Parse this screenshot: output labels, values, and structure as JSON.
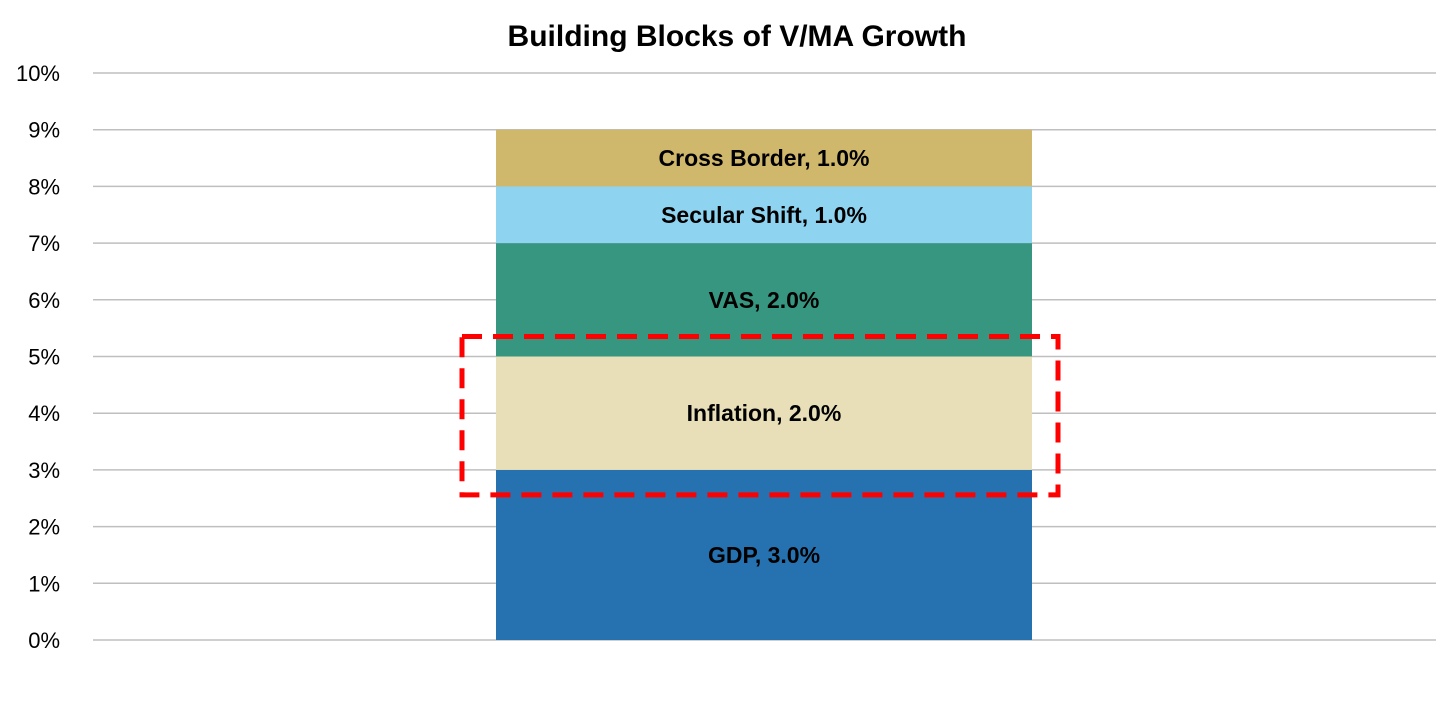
{
  "chart_data": {
    "type": "bar",
    "stacked": true,
    "title": "Building Blocks of V/MA Growth",
    "ylim": [
      0,
      10
    ],
    "yticks": [
      {
        "value": 0,
        "label": "0%"
      },
      {
        "value": 1,
        "label": "1%"
      },
      {
        "value": 2,
        "label": "2%"
      },
      {
        "value": 3,
        "label": "3%"
      },
      {
        "value": 4,
        "label": "4%"
      },
      {
        "value": 5,
        "label": "5%"
      },
      {
        "value": 6,
        "label": "6%"
      },
      {
        "value": 7,
        "label": "7%"
      },
      {
        "value": 8,
        "label": "8%"
      },
      {
        "value": 9,
        "label": "9%"
      },
      {
        "value": 10,
        "label": "10%"
      }
    ],
    "grid": true,
    "segments": [
      {
        "key": "gdp",
        "label": "GDP, 3.0%",
        "value": 3.0,
        "color": "#2672b0"
      },
      {
        "key": "inflation",
        "label": "Inflation, 2.0%",
        "value": 2.0,
        "color": "#e8dfb8"
      },
      {
        "key": "vas",
        "label": "VAS, 2.0%",
        "value": 2.0,
        "color": "#379680"
      },
      {
        "key": "secular-shift",
        "label": "Secular Shift, 1.0%",
        "value": 1.0,
        "color": "#8ed4f1"
      },
      {
        "key": "cross-border",
        "label": "Cross Border, 1.0%",
        "value": 1.0,
        "color": "#cfb76b"
      }
    ],
    "highlight": {
      "segment": "inflation",
      "style": "dashed",
      "color": "#ff0000"
    }
  }
}
